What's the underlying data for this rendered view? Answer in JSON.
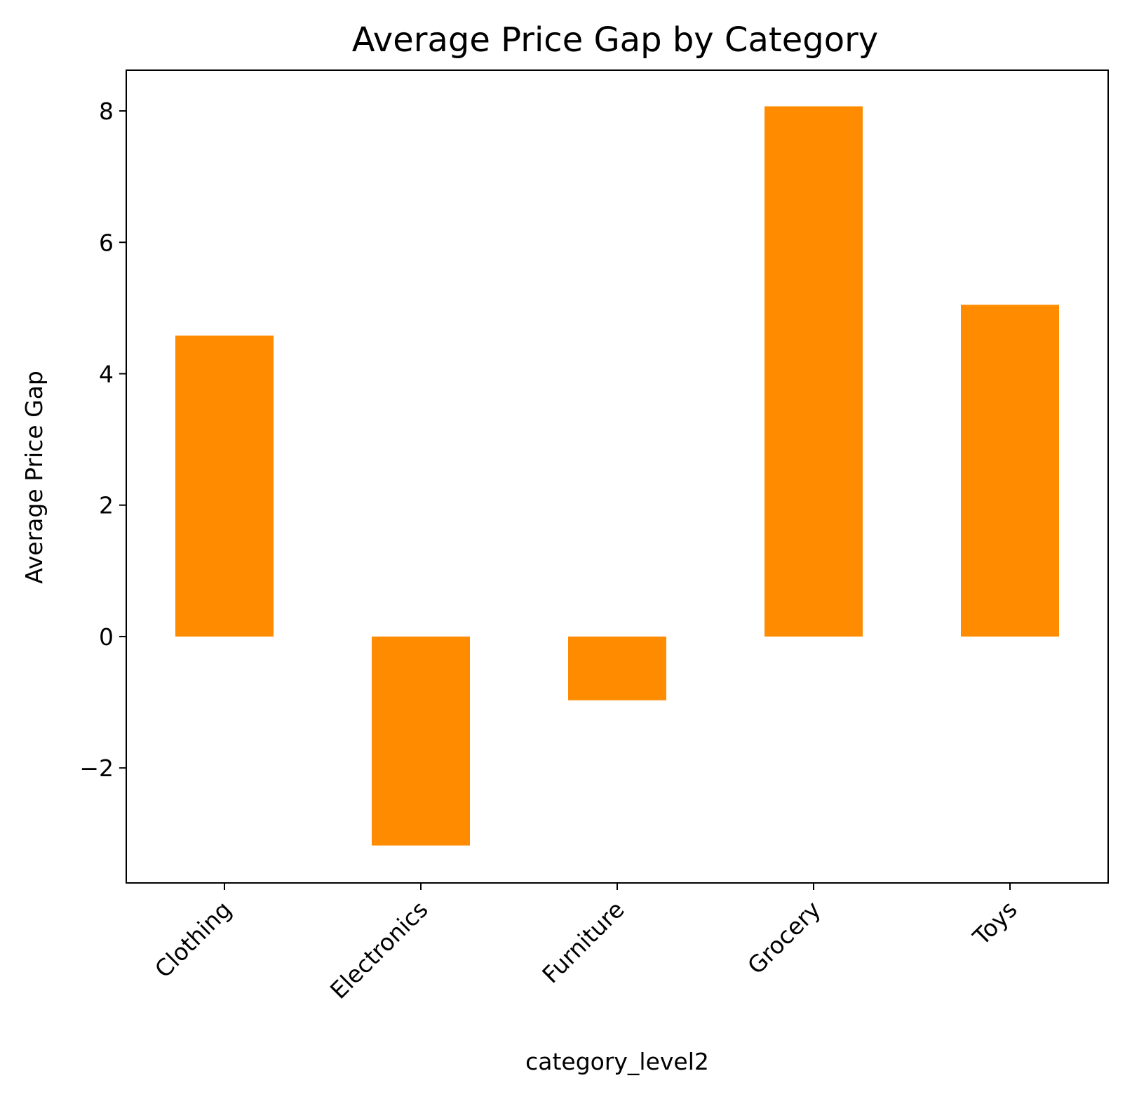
{
  "chart_data": {
    "type": "bar",
    "title": "Average Price Gap by Category",
    "xlabel": "category_level2",
    "ylabel": "Average Price Gap",
    "categories": [
      "Clothing",
      "Electronics",
      "Furniture",
      "Grocery",
      "Toys"
    ],
    "values": [
      4.58,
      -3.18,
      -0.97,
      8.07,
      5.05
    ],
    "ylim": [
      -3.75,
      8.62
    ],
    "yticks": [
      -2,
      0,
      2,
      4,
      6,
      8
    ],
    "ytick_labels": [
      "−2",
      "0",
      "2",
      "4",
      "6",
      "8"
    ],
    "bar_color": "#ff8c00",
    "grid": false,
    "legend": "none"
  }
}
